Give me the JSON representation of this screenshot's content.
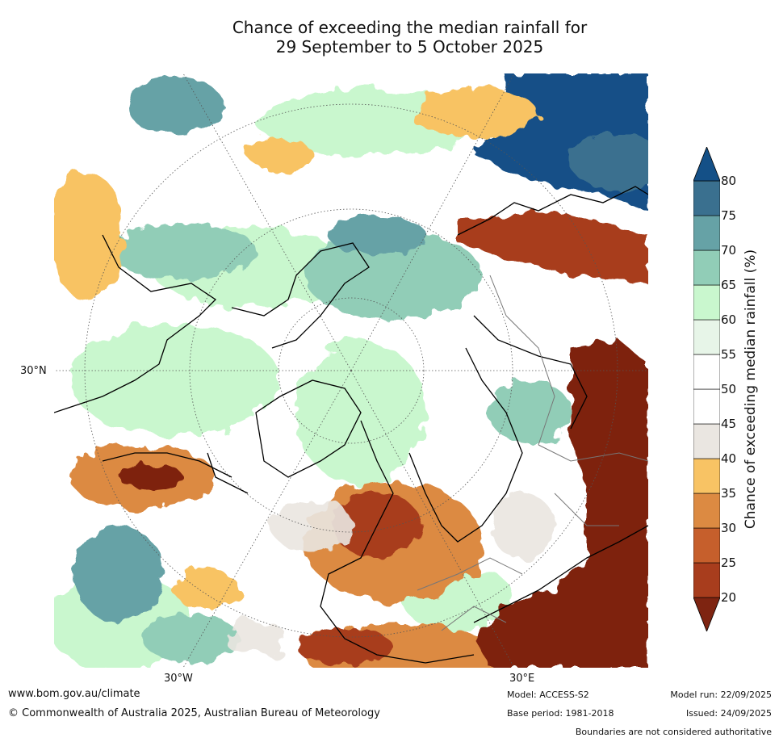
{
  "title_line1": "Chance of exceeding the median rainfall for",
  "title_line2": "29 September to 5 October 2025",
  "axes": {
    "latitude_label": "30°N",
    "longitude_west_label": "30°W",
    "longitude_east_label": "30°E"
  },
  "colorbar": {
    "label": "Chance of exceeding median rainfall (%)",
    "ticks": [
      "80",
      "75",
      "70",
      "65",
      "60",
      "55",
      "50",
      "45",
      "40",
      "35",
      "30",
      "25",
      "20"
    ],
    "colors": [
      "#7e2411",
      "#a83d1d",
      "#c65f2c",
      "#dc8a42",
      "#f8c364",
      "#eae6e1",
      "#ffffff",
      "#ffffff",
      "#e7f5e8",
      "#c9f7ce",
      "#91cdb7",
      "#66a2a6",
      "#3a708f",
      "#145087"
    ]
  },
  "footer": {
    "url": "www.bom.gov.au/climate",
    "copyright": "© Commonwealth of Australia 2025, Australian Bureau of Meteorology",
    "model": "Model: ACCESS-S2",
    "base_period": "Base period: 1981-2018",
    "model_run": "Model run: 22/09/2025",
    "issued": "Issued: 24/09/2025",
    "disclaimer": "Boundaries are not considered authoritative"
  }
}
